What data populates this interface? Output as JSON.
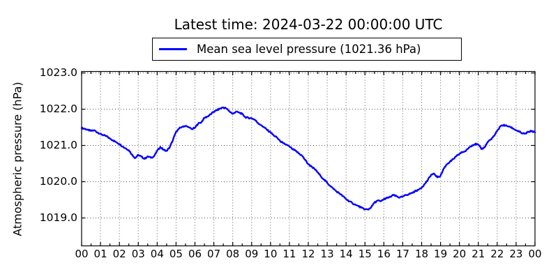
{
  "figure": {
    "background_color": "#ffffff",
    "text_color": "#000000"
  },
  "chart_data": {
    "type": "line",
    "title": "Latest time: 2024-03-22 00:00:00 UTC",
    "xlabel": "",
    "ylabel": "Atmospheric pressure (hPa)",
    "legend_position": "top center, outside axes, boxed",
    "grid": "dotted, both axes",
    "x_tick_labels": [
      "00",
      "01",
      "02",
      "03",
      "04",
      "05",
      "06",
      "07",
      "08",
      "09",
      "10",
      "11",
      "12",
      "13",
      "14",
      "15",
      "16",
      "17",
      "18",
      "19",
      "20",
      "21",
      "22",
      "23",
      "00"
    ],
    "y_tick_labels": [
      "1023.0",
      "1022.0",
      "1021.0",
      "1020.0",
      "1019.0"
    ],
    "y_tick_values": [
      1023.0,
      1022.0,
      1021.0,
      1020.0,
      1019.0
    ],
    "xlim_hours": [
      0,
      24
    ],
    "ylim": [
      1018.23,
      1023.04
    ],
    "x_minor_tick_step_hours": 0.5,
    "latest_value_hpa": 1021.36,
    "series": [
      {
        "name": "Mean sea level pressure (1021.36 hPa)",
        "color": "#0000ff",
        "x_start_hour": 0,
        "x_step_hours": 0.166667,
        "values": [
          1021.48,
          1021.46,
          1021.43,
          1021.4,
          1021.42,
          1021.36,
          1021.32,
          1021.28,
          1021.25,
          1021.19,
          1021.14,
          1021.09,
          1021.04,
          1020.97,
          1020.92,
          1020.87,
          1020.75,
          1020.65,
          1020.74,
          1020.69,
          1020.63,
          1020.7,
          1020.66,
          1020.7,
          1020.85,
          1020.96,
          1020.88,
          1020.85,
          1020.95,
          1021.15,
          1021.38,
          1021.47,
          1021.52,
          1021.54,
          1021.5,
          1021.45,
          1021.49,
          1021.6,
          1021.64,
          1021.76,
          1021.8,
          1021.86,
          1021.93,
          1021.97,
          1022.02,
          1022.05,
          1022.02,
          1021.94,
          1021.87,
          1021.93,
          1021.91,
          1021.87,
          1021.78,
          1021.76,
          1021.75,
          1021.71,
          1021.62,
          1021.56,
          1021.5,
          1021.42,
          1021.36,
          1021.28,
          1021.22,
          1021.13,
          1021.06,
          1021.02,
          1020.97,
          1020.9,
          1020.85,
          1020.78,
          1020.72,
          1020.6,
          1020.48,
          1020.42,
          1020.35,
          1020.26,
          1020.15,
          1020.06,
          1019.97,
          1019.88,
          1019.8,
          1019.73,
          1019.67,
          1019.6,
          1019.52,
          1019.46,
          1019.41,
          1019.36,
          1019.32,
          1019.28,
          1019.24,
          1019.23,
          1019.3,
          1019.42,
          1019.48,
          1019.46,
          1019.52,
          1019.55,
          1019.58,
          1019.63,
          1019.6,
          1019.56,
          1019.59,
          1019.63,
          1019.66,
          1019.69,
          1019.74,
          1019.78,
          1019.84,
          1019.94,
          1020.05,
          1020.19,
          1020.22,
          1020.12,
          1020.16,
          1020.36,
          1020.48,
          1020.55,
          1020.62,
          1020.7,
          1020.77,
          1020.82,
          1020.84,
          1020.94,
          1021.0,
          1021.04,
          1021.02,
          1020.9,
          1020.95,
          1021.1,
          1021.17,
          1021.26,
          1021.4,
          1021.53,
          1021.56,
          1021.54,
          1021.52,
          1021.47,
          1021.42,
          1021.38,
          1021.33,
          1021.33,
          1021.38,
          1021.4,
          1021.36
        ]
      }
    ]
  }
}
